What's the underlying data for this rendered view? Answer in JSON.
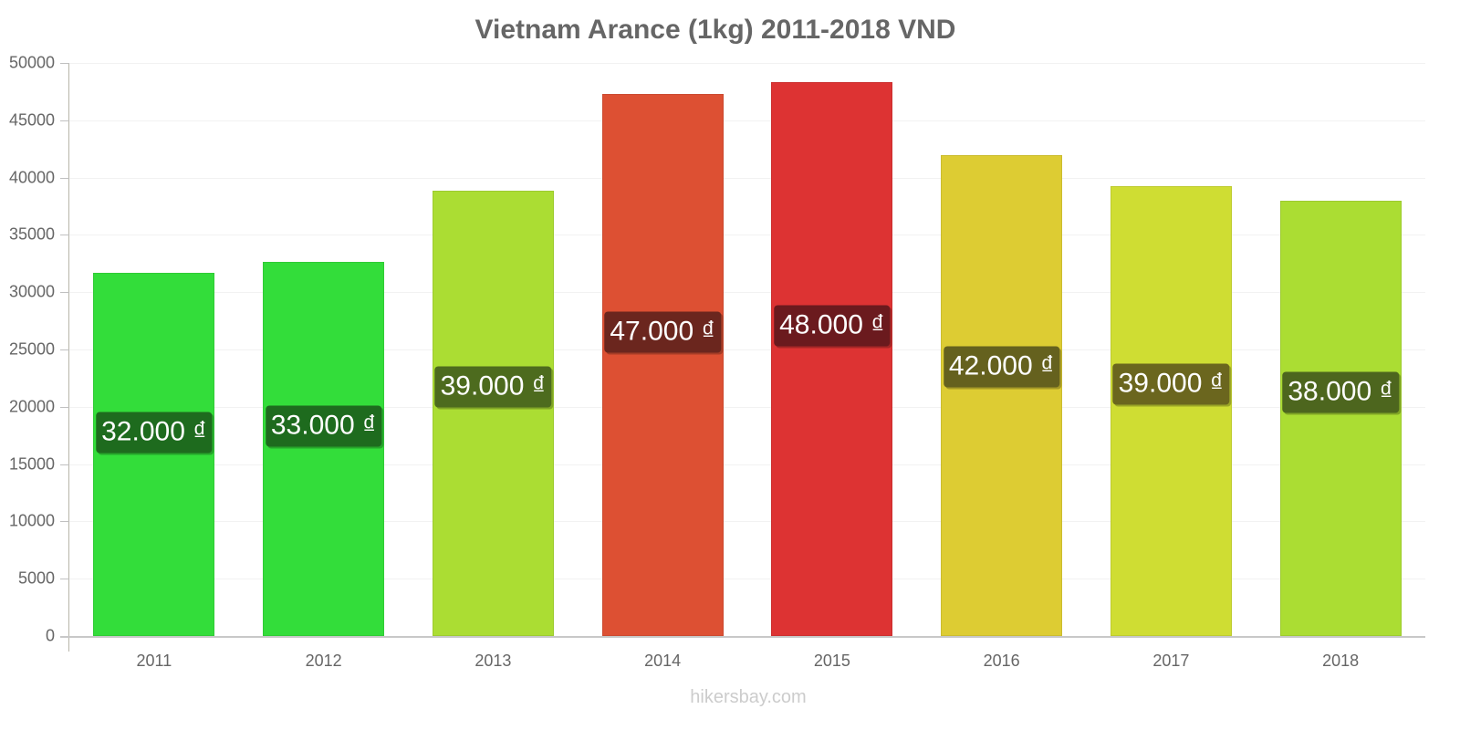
{
  "chart_data": {
    "type": "bar",
    "title": "Vietnam Arance (1kg) 2011-2018 VND",
    "xlabel": "",
    "ylabel": "",
    "ylim": [
      0,
      50000
    ],
    "yticks": [
      0,
      5000,
      10000,
      15000,
      20000,
      25000,
      30000,
      35000,
      40000,
      45000,
      50000
    ],
    "grid": true,
    "legend": null,
    "categories": [
      "2011",
      "2012",
      "2013",
      "2014",
      "2015",
      "2016",
      "2017",
      "2018"
    ],
    "values": [
      31700,
      32650,
      38850,
      47300,
      48330,
      41960,
      39250,
      37980
    ],
    "data_labels": [
      "32.000 ₫",
      "33.000 ₫",
      "39.000 ₫",
      "47.000 ₫",
      "48.000 ₫",
      "42.000 ₫",
      "39.000 ₫",
      "38.000 ₫"
    ],
    "bar_colors": [
      "#33dd3a",
      "#33dd3a",
      "#abdd33",
      "#dd5033",
      "#dd3333",
      "#ddcc33",
      "#cfdd33",
      "#abdd33"
    ],
    "label_colors": [
      "#1e6b1e",
      "#1e6b1e",
      "#4d6b1e",
      "#6b261e",
      "#6b1a1e",
      "#65611e",
      "#6b661e",
      "#4d661e"
    ],
    "source": "hikersbay.com"
  },
  "watermark": "hikersbay.com"
}
